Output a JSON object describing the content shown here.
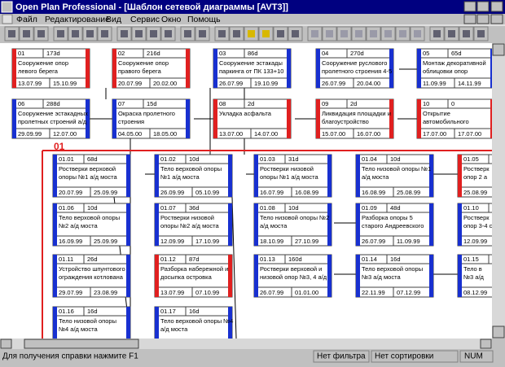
{
  "window": {
    "title": "Open Plan Professional - [Шаблон сетевой диаграммы [AVT3]]"
  },
  "menu": [
    "Файл",
    "Редактирование",
    "Вид",
    "Сервис",
    "Окно",
    "Помощь"
  ],
  "group": {
    "label": "01"
  },
  "nodes": [
    {
      "id": "01",
      "duration": "173d",
      "lines": [
        "Сооружение опор",
        "левого берега"
      ],
      "start": "13.07.99",
      "finish": "15.10.99",
      "color": "#e02020"
    },
    {
      "id": "02",
      "duration": "216d",
      "lines": [
        "Сооружение опор",
        "правого берега"
      ],
      "start": "20.07.99",
      "finish": "20.02.00",
      "color": "#e02020"
    },
    {
      "id": "03",
      "duration": "86d",
      "lines": [
        "Сооружение эстакады",
        "паркинга от ПК 133+10"
      ],
      "start": "26.07.99",
      "finish": "19.10.99",
      "color": "#1830d0"
    },
    {
      "id": "04",
      "duration": "270d",
      "lines": [
        "Сооружение руслового",
        "пролетного строения 4-5"
      ],
      "start": "26.07.99",
      "finish": "20.04.00",
      "color": "#1830d0"
    },
    {
      "id": "05",
      "duration": "65d",
      "lines": [
        "Монтаж декоративной",
        "облицовки опор"
      ],
      "start": "11.09.99",
      "finish": "14.11.99",
      "color": "#1830d0"
    },
    {
      "id": "06",
      "duration": "288d",
      "lines": [
        "Сооружение эстакадных",
        "пролетных строений а/д"
      ],
      "start": "29.09.99",
      "finish": "12.07.00",
      "color": "#1830d0"
    },
    {
      "id": "07",
      "duration": "15d",
      "lines": [
        "Окраска пролетного",
        "строения"
      ],
      "start": "04.05.00",
      "finish": "18.05.00",
      "color": "#1830d0"
    },
    {
      "id": "08",
      "duration": "2d",
      "lines": [
        "Укладка асфальта"
      ],
      "start": "13.07.00",
      "finish": "14.07.00",
      "color": "#e02020"
    },
    {
      "id": "09",
      "duration": "2d",
      "lines": [
        "Ликвидация площадки и",
        "благоустройство"
      ],
      "start": "15.07.00",
      "finish": "16.07.00",
      "color": "#e02020"
    },
    {
      "id": "10",
      "duration": "0",
      "lines": [
        "Открытие",
        "автомобильного"
      ],
      "start": "17.07.00",
      "finish": "17.07.00",
      "color": "#e02020"
    },
    {
      "id": "01.01",
      "duration": "68d",
      "lines": [
        "Ростверки верховой",
        "опоры №1 а/д моста"
      ],
      "start": "20.07.99",
      "finish": "25.09.99",
      "color": "#1830d0"
    },
    {
      "id": "01.02",
      "duration": "10d",
      "lines": [
        "Тело верховой опоры",
        "№1 а/д моста"
      ],
      "start": "26.09.99",
      "finish": "05.10.99",
      "color": "#1830d0"
    },
    {
      "id": "01.03",
      "duration": "31d",
      "lines": [
        "Ростверки низовой",
        "опоры №1 а/д моста"
      ],
      "start": "16.07.99",
      "finish": "16.08.99",
      "color": "#1830d0"
    },
    {
      "id": "01.04",
      "duration": "10d",
      "lines": [
        "Тело низовой опоры №1",
        "а/д моста"
      ],
      "start": "16.08.99",
      "finish": "25.08.99",
      "color": "#1830d0"
    },
    {
      "id": "01.05",
      "duration": "",
      "lines": [
        "Ростверк",
        "опор 2 а"
      ],
      "start": "25.08.99",
      "finish": "",
      "color": "#e02020"
    },
    {
      "id": "01.06",
      "duration": "10d",
      "lines": [
        "Тело верховой опоры",
        "№2 а/д моста"
      ],
      "start": "16.09.99",
      "finish": "25.09.99",
      "color": "#1830d0"
    },
    {
      "id": "01.07",
      "duration": "36d",
      "lines": [
        "Ростверки низовой",
        "опоры №2 а/д моста"
      ],
      "start": "12.09.99",
      "finish": "17.10.99",
      "color": "#1830d0"
    },
    {
      "id": "01.08",
      "duration": "10d",
      "lines": [
        "Тело низовой опоры №2",
        "а/д моста"
      ],
      "start": "18.10.99",
      "finish": "27.10.99",
      "color": "#1830d0"
    },
    {
      "id": "01.09",
      "duration": "48d",
      "lines": [
        "Разборка опоры 5",
        "старого Андреевского"
      ],
      "start": "26.07.99",
      "finish": "11.09.99",
      "color": "#1830d0"
    },
    {
      "id": "01.10",
      "duration": "",
      "lines": [
        "Ростверк",
        "опор 3-4 с"
      ],
      "start": "12.09.99",
      "finish": "",
      "color": "#1830d0"
    },
    {
      "id": "01.11",
      "duration": "26d",
      "lines": [
        "Устройство шпунтового",
        "ограждения котлована"
      ],
      "start": "29.07.99",
      "finish": "23.08.99",
      "color": "#1830d0"
    },
    {
      "id": "01.12",
      "duration": "87d",
      "lines": [
        "Разборка набережной и",
        "досыпка островка"
      ],
      "start": "13.07.99",
      "finish": "07.10.99",
      "color": "#e02020"
    },
    {
      "id": "01.13",
      "duration": "160d",
      "lines": [
        "Ростверки верховой и",
        "низовой опор №3, 4 а/д"
      ],
      "start": "26.07.99",
      "finish": "01.01.00",
      "color": "#1830d0"
    },
    {
      "id": "01.14",
      "duration": "16d",
      "lines": [
        "Тело верховой опоры",
        "№3 а/д моста"
      ],
      "start": "22.11.99",
      "finish": "07.12.99",
      "color": "#1830d0"
    },
    {
      "id": "01.15",
      "duration": "",
      "lines": [
        "Тело в",
        "№3 а/д"
      ],
      "start": "08.12.99",
      "finish": "",
      "color": "#1830d0"
    },
    {
      "id": "01.16",
      "duration": "16d",
      "lines": [
        "Тело низовой опоры",
        "№4 а/д моста"
      ],
      "start": "",
      "finish": "",
      "color": "#1830d0"
    },
    {
      "id": "01.17",
      "duration": "16d",
      "lines": [
        "Тело верховой опоры №4",
        "а/д моста"
      ],
      "start": "",
      "finish": "",
      "color": "#1830d0"
    }
  ],
  "status": {
    "help": "Для получения справки нажмите F1",
    "filter": "Нет фильтра",
    "sort": "Нет сортировки",
    "num": "NUM"
  }
}
